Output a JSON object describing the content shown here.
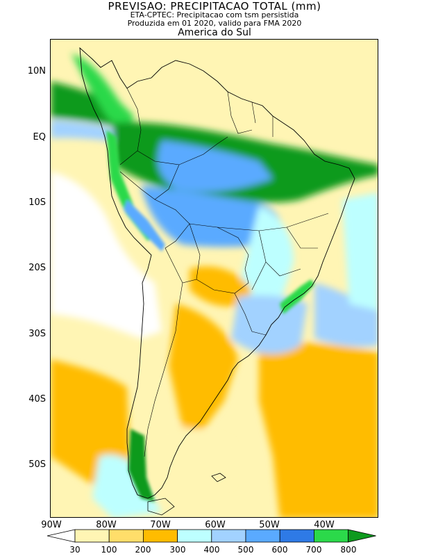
{
  "header": {
    "title": "PREVISAO: PRECIPITACAO TOTAL (mm)",
    "line2": "ETA-CPTEC: Precipitacao com tsm persistida",
    "line3": "Produzida em 01 2020, valido para FMA 2020",
    "region": "America do Sul"
  },
  "axes": {
    "lat_labels": [
      "10N",
      "EQ",
      "10S",
      "20S",
      "30S",
      "40S",
      "50S"
    ],
    "lon_labels": [
      "90W",
      "80W",
      "70W",
      "60W",
      "50W",
      "40W"
    ]
  },
  "legend": {
    "levels": [
      "30",
      "100",
      "200",
      "300",
      "400",
      "500",
      "600",
      "700",
      "800"
    ],
    "colors": [
      "#ffffff",
      "#fff5b4",
      "#ffde6a",
      "#ffbc00",
      "#bdffff",
      "#a2d2ff",
      "#5aaaff",
      "#2e7ae6",
      "#2bd94a",
      "#0e9a1e"
    ]
  },
  "map_colors": {
    "ocean_base": "#fff5b4",
    "land": "#fff5b4",
    "coast": "#000000",
    "border": "#000000"
  }
}
